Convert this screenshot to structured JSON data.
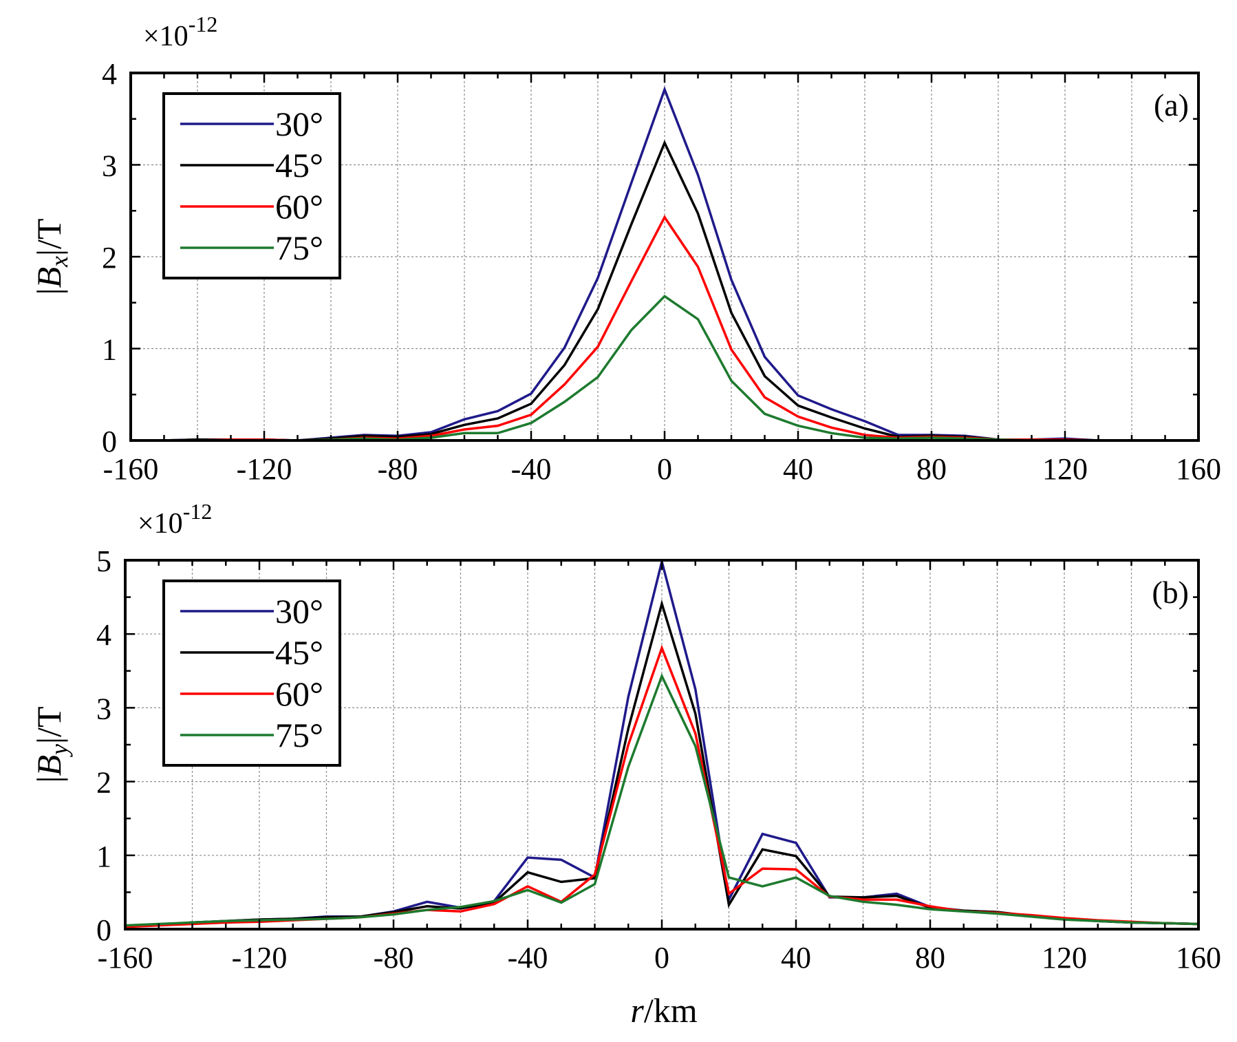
{
  "figure": {
    "xlabel_italic": "r",
    "xlabel_unit": "/km"
  },
  "chart_data": [
    {
      "type": "line",
      "panel_label": "(a)",
      "ylabel_prefix": "|",
      "ylabel_var": "B",
      "ylabel_sub": "x",
      "ylabel_suffix": "|/T",
      "y_exponent_prefix": "×10",
      "y_exponent_power": "-12",
      "xlim": [
        -160,
        160
      ],
      "ylim": [
        0,
        4
      ],
      "xticks": [
        -160,
        -120,
        -80,
        -40,
        0,
        40,
        80,
        120,
        160
      ],
      "yticks": [
        0,
        1,
        2,
        3,
        4
      ],
      "grid": true,
      "legend_position": "top-left",
      "x": [
        -160,
        -150,
        -140,
        -130,
        -120,
        -110,
        -100,
        -90,
        -80,
        -70,
        -60,
        -50,
        -40,
        -30,
        -20,
        -10,
        0,
        10,
        20,
        30,
        40,
        50,
        60,
        70,
        80,
        90,
        100,
        110,
        120,
        130,
        140,
        150,
        160
      ],
      "series": [
        {
          "name": "30°",
          "color": "#1f1a8a",
          "values": [
            0.0,
            0.0,
            0.01,
            0.01,
            0.01,
            0.0,
            0.03,
            0.06,
            0.05,
            0.09,
            0.23,
            0.32,
            0.51,
            1.01,
            1.77,
            2.8,
            3.82,
            2.89,
            1.75,
            0.91,
            0.49,
            0.34,
            0.21,
            0.06,
            0.06,
            0.05,
            0.01,
            0.01,
            0.02,
            0.0,
            0.0,
            0.0,
            0.0
          ]
        },
        {
          "name": "45°",
          "color": "#000000",
          "values": [
            0.0,
            0.0,
            0.01,
            0.01,
            0.01,
            0.0,
            0.02,
            0.05,
            0.04,
            0.07,
            0.17,
            0.24,
            0.4,
            0.82,
            1.43,
            2.35,
            3.24,
            2.47,
            1.39,
            0.7,
            0.38,
            0.25,
            0.13,
            0.04,
            0.05,
            0.04,
            0.01,
            0.01,
            0.01,
            0.0,
            0.0,
            0.0,
            0.0
          ]
        },
        {
          "name": "60°",
          "color": "#ff0000",
          "values": [
            0.0,
            0.0,
            0.0,
            0.01,
            0.01,
            0.0,
            0.01,
            0.03,
            0.02,
            0.05,
            0.12,
            0.16,
            0.28,
            0.61,
            1.02,
            1.73,
            2.43,
            1.89,
            0.99,
            0.47,
            0.26,
            0.14,
            0.06,
            0.03,
            0.04,
            0.03,
            0.01,
            0.01,
            0.01,
            0.0,
            0.0,
            0.0,
            0.0
          ]
        },
        {
          "name": "75°",
          "color": "#1d7a2e",
          "values": [
            0.0,
            0.0,
            0.0,
            0.0,
            0.0,
            0.0,
            0.01,
            0.02,
            0.01,
            0.03,
            0.08,
            0.08,
            0.19,
            0.42,
            0.69,
            1.2,
            1.57,
            1.32,
            0.65,
            0.29,
            0.16,
            0.08,
            0.03,
            0.02,
            0.03,
            0.02,
            0.01,
            0.0,
            0.0,
            0.0,
            0.0,
            0.0,
            0.0
          ]
        }
      ]
    },
    {
      "type": "line",
      "panel_label": "(b)",
      "ylabel_prefix": "|",
      "ylabel_var": "B",
      "ylabel_sub": "y",
      "ylabel_suffix": "|/T",
      "y_exponent_prefix": "×10",
      "y_exponent_power": "-12",
      "xlim": [
        -160,
        160
      ],
      "ylim": [
        0,
        5
      ],
      "xticks": [
        -160,
        -120,
        -80,
        -40,
        0,
        40,
        80,
        120,
        160
      ],
      "yticks": [
        0,
        1,
        2,
        3,
        4,
        5
      ],
      "grid": true,
      "legend_position": "top-left",
      "x": [
        -160,
        -150,
        -140,
        -130,
        -120,
        -110,
        -100,
        -90,
        -80,
        -70,
        -60,
        -50,
        -40,
        -30,
        -20,
        -10,
        0,
        10,
        20,
        30,
        40,
        50,
        60,
        70,
        80,
        90,
        100,
        110,
        120,
        130,
        140,
        150,
        160
      ],
      "series": [
        {
          "name": "30°",
          "color": "#1f1a8a",
          "values": [
            0.04,
            0.06,
            0.09,
            0.11,
            0.13,
            0.14,
            0.17,
            0.17,
            0.24,
            0.37,
            0.29,
            0.38,
            0.97,
            0.94,
            0.7,
            3.15,
            4.98,
            3.25,
            0.4,
            1.29,
            1.17,
            0.43,
            0.43,
            0.48,
            0.3,
            0.25,
            0.23,
            0.18,
            0.14,
            0.11,
            0.09,
            0.08,
            0.07
          ]
        },
        {
          "name": "45°",
          "color": "#000000",
          "values": [
            0.04,
            0.06,
            0.09,
            0.11,
            0.13,
            0.14,
            0.16,
            0.17,
            0.23,
            0.31,
            0.28,
            0.36,
            0.77,
            0.64,
            0.69,
            2.72,
            4.41,
            2.92,
            0.33,
            1.08,
            0.99,
            0.44,
            0.43,
            0.45,
            0.29,
            0.25,
            0.23,
            0.18,
            0.14,
            0.11,
            0.09,
            0.08,
            0.07
          ]
        },
        {
          "name": "60°",
          "color": "#ff0000",
          "values": [
            0.03,
            0.05,
            0.07,
            0.09,
            0.1,
            0.12,
            0.14,
            0.16,
            0.21,
            0.26,
            0.24,
            0.34,
            0.58,
            0.37,
            0.74,
            2.5,
            3.81,
            2.65,
            0.48,
            0.82,
            0.81,
            0.44,
            0.4,
            0.4,
            0.31,
            0.24,
            0.22,
            0.19,
            0.15,
            0.12,
            0.1,
            0.08,
            0.07
          ]
        },
        {
          "name": "75°",
          "color": "#1d7a2e",
          "values": [
            0.05,
            0.07,
            0.09,
            0.11,
            0.12,
            0.13,
            0.14,
            0.16,
            0.2,
            0.26,
            0.3,
            0.38,
            0.53,
            0.36,
            0.61,
            2.2,
            3.43,
            2.48,
            0.7,
            0.58,
            0.7,
            0.45,
            0.37,
            0.33,
            0.27,
            0.24,
            0.21,
            0.17,
            0.13,
            0.11,
            0.09,
            0.08,
            0.07
          ]
        }
      ]
    }
  ]
}
